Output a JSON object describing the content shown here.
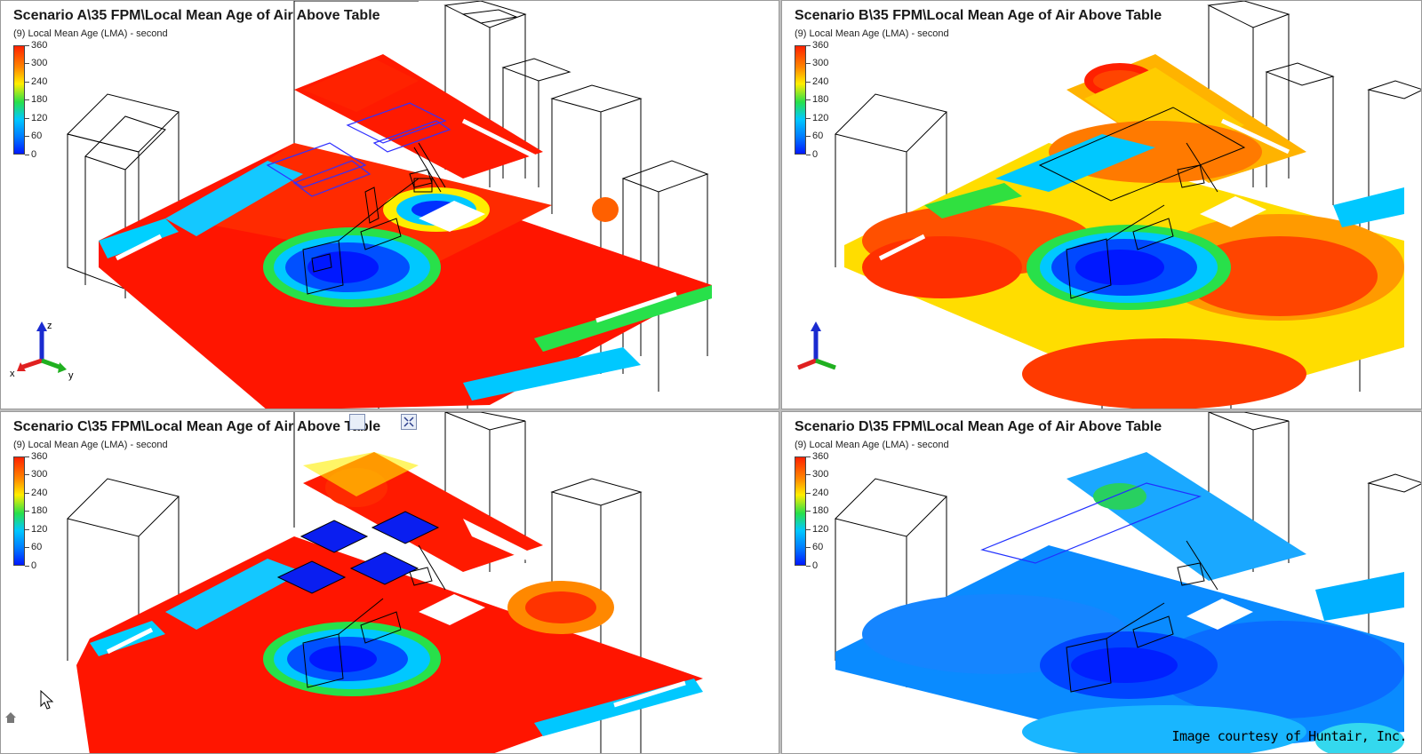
{
  "colors": {
    "low": "#0018ff",
    "mid_low": "#00c8ff",
    "mid": "#27e04a",
    "mid_high": "#ffee00",
    "high": "#ff2200",
    "floor_line": "#000000"
  },
  "legend": {
    "labels": [
      "360",
      "300",
      "240",
      "180",
      "120",
      "60",
      "0"
    ]
  },
  "axes": {
    "z": "z",
    "x": "x",
    "y": "y"
  },
  "panels": [
    {
      "title": "Scenario A\\35 FPM\\Local Mean Age of Air Above Table",
      "subtitle": "(9) Local Mean Age (LMA) - second",
      "field": "high"
    },
    {
      "title": "Scenario B\\35 FPM\\Local Mean Age of Air Above Table",
      "subtitle": "(9) Local Mean Age (LMA) - second",
      "field": "mixed"
    },
    {
      "title": "Scenario C\\35 FPM\\Local Mean Age of Air Above Table",
      "subtitle": "(9) Local Mean Age (LMA) - second",
      "field": "high-diffusers"
    },
    {
      "title": "Scenario D\\35 FPM\\Local Mean Age of Air Above Table",
      "subtitle": "(9) Local Mean Age (LMA) - second",
      "field": "low"
    }
  ],
  "watermark": "Image courtesy of Huntair, Inc.",
  "toolbar_icons": [
    "select-icon",
    "fit-view-icon"
  ]
}
